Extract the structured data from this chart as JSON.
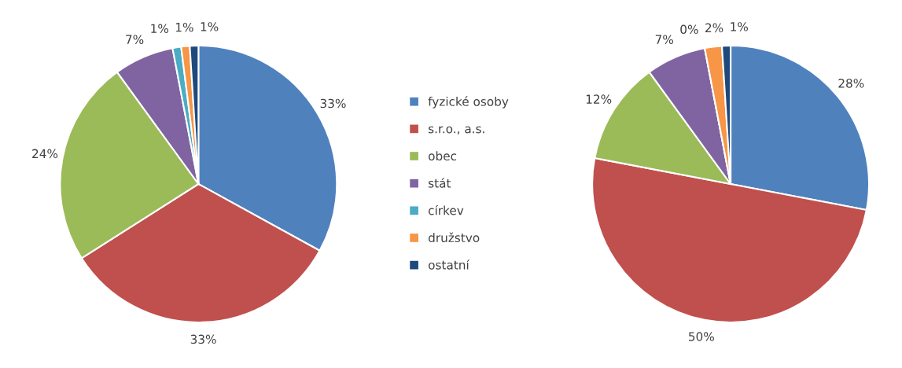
{
  "chart_data": [
    {
      "type": "pie",
      "categories": [
        "fyzické osoby",
        "s.r.o., a.s.",
        "obec",
        "stát",
        "církev",
        "družstvo",
        "ostatní"
      ],
      "values": [
        33,
        33,
        24,
        7,
        1,
        1,
        1
      ],
      "value_labels": [
        "33%",
        "33%",
        "24%",
        "7%",
        "1%",
        "1%",
        "1%"
      ],
      "colors": [
        "#4f81bd",
        "#c0504d",
        "#9bbb59",
        "#8064a2",
        "#4bacc6",
        "#f79646",
        "#1f497d"
      ],
      "legend": "right"
    },
    {
      "type": "pie",
      "categories": [
        null,
        null,
        null,
        null,
        null,
        null,
        null
      ],
      "values": [
        28,
        50,
        12,
        7,
        0,
        2,
        1
      ],
      "value_labels": [
        "28%",
        "50%",
        "12%",
        "7%",
        "0%",
        "2%",
        "1%"
      ],
      "colors": [
        "#4f81bd",
        "#c0504d",
        "#9bbb59",
        "#8064a2",
        "#4bacc6",
        "#f79646",
        "#1f497d"
      ]
    }
  ]
}
